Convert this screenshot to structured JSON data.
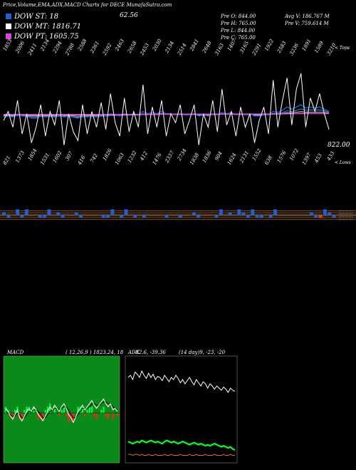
{
  "header": {
    "title": "Price,Volume,EMA,ADX,MACD Charts for DECE MunafaSutra.com",
    "legend": [
      {
        "label": "DOW ST: 18",
        "color": "#1e5fd8"
      },
      {
        "label": "DOW MT: 1816.71",
        "color": "#ffffff"
      },
      {
        "label": "DOW PT: 1605.75",
        "color": "#e040e0"
      }
    ],
    "top_value": "62.56",
    "stats_col1": [
      "Pre  O: 844.00",
      "Pre  H: 765.00",
      "Pre  L: 844.00",
      "Pre  C: 765.00"
    ],
    "stats_col2": [
      "Avg V: 186.767 M",
      "Pre  V: 759.614  M"
    ]
  },
  "price_panel": {
    "right_top_label": "< Tops",
    "right_bottom_label": "< Lows",
    "last_price": "822.00",
    "top_labels": [
      "1853",
      "2006",
      "2411",
      "2134",
      "2294",
      "2788",
      "2588",
      "2361",
      "2592",
      "2463",
      "2658",
      "2453",
      "2030",
      "2134",
      "2514",
      "2841",
      "2648",
      "3163",
      "1407",
      "3165",
      "2291",
      "1922",
      "2583",
      "3236",
      "1891",
      "1589",
      "3210"
    ],
    "bottom_labels": [
      "821",
      "1373",
      "1854",
      "1531",
      "1602",
      "307",
      "416",
      "742",
      "1826",
      "1063",
      "1232",
      "412",
      "1476",
      "2337",
      "2734",
      "1838",
      "1836",
      "904",
      "1624",
      "2131",
      "1552",
      "638",
      "1576",
      "1072",
      "1397",
      "453",
      "433"
    ],
    "close": [
      820,
      900,
      760,
      1000,
      700,
      880,
      620,
      760,
      960,
      680,
      900,
      780,
      1000,
      600,
      880,
      720,
      640,
      960,
      700,
      900,
      760,
      980,
      740,
      1060,
      800,
      680,
      1020,
      720,
      900,
      760,
      1140,
      700,
      940,
      760,
      1000,
      680,
      880,
      800,
      960,
      700,
      820,
      960,
      600,
      880,
      760,
      1000,
      720,
      1100,
      780,
      900,
      680,
      940,
      760,
      880,
      620,
      820,
      940,
      700,
      1180,
      760,
      1000,
      1200,
      780,
      1100,
      1240,
      760,
      1020,
      900,
      1060,
      880,
      740
    ],
    "ema1": [
      850,
      860,
      850,
      870,
      860,
      860,
      840,
      840,
      860,
      850,
      860,
      850,
      870,
      850,
      860,
      850,
      840,
      860,
      850,
      860,
      850,
      870,
      860,
      880,
      870,
      860,
      880,
      870,
      880,
      870,
      900,
      880,
      890,
      880,
      900,
      880,
      880,
      870,
      880,
      870,
      870,
      880,
      860,
      870,
      860,
      880,
      870,
      890,
      880,
      890,
      870,
      880,
      870,
      880,
      860,
      860,
      870,
      870,
      900,
      890,
      910,
      940,
      920,
      940,
      960,
      930,
      940,
      930,
      940,
      920,
      900
    ],
    "ema2": [
      860,
      862,
      858,
      864,
      860,
      860,
      852,
      852,
      856,
      852,
      856,
      854,
      860,
      854,
      856,
      852,
      848,
      854,
      852,
      856,
      852,
      860,
      858,
      866,
      864,
      860,
      868,
      866,
      870,
      866,
      880,
      874,
      878,
      874,
      884,
      876,
      876,
      872,
      876,
      872,
      872,
      876,
      866,
      870,
      866,
      874,
      870,
      880,
      876,
      880,
      872,
      876,
      872,
      876,
      866,
      866,
      870,
      870,
      884,
      880,
      890,
      906,
      900,
      910,
      924,
      910,
      914,
      910,
      914,
      906,
      896
    ],
    "ema3": [
      866,
      866,
      864,
      866,
      864,
      864,
      860,
      860,
      862,
      860,
      862,
      860,
      864,
      860,
      862,
      860,
      858,
      860,
      860,
      862,
      860,
      864,
      862,
      866,
      866,
      864,
      868,
      868,
      870,
      868,
      874,
      872,
      874,
      872,
      878,
      874,
      874,
      872,
      874,
      872,
      872,
      874,
      870,
      872,
      870,
      874,
      872,
      876,
      874,
      876,
      872,
      874,
      872,
      874,
      870,
      870,
      872,
      872,
      878,
      876,
      882,
      890,
      888,
      894,
      900,
      894,
      896,
      894,
      896,
      892,
      888
    ],
    "ema4": [
      870,
      870,
      869,
      870,
      869,
      869,
      867,
      867,
      868,
      867,
      868,
      867,
      869,
      867,
      868,
      867,
      866,
      867,
      867,
      868,
      867,
      869,
      868,
      870,
      870,
      869,
      871,
      871,
      872,
      871,
      874,
      873,
      874,
      873,
      876,
      874,
      874,
      873,
      874,
      873,
      873,
      874,
      872,
      873,
      872,
      874,
      873,
      875,
      874,
      875,
      873,
      874,
      873,
      874,
      872,
      872,
      873,
      873,
      876,
      875,
      878,
      882,
      881,
      884,
      887,
      884,
      885,
      884,
      885,
      883,
      881
    ],
    "ma_magenta": [
      874,
      874,
      874,
      874,
      874,
      874,
      873,
      873,
      873,
      873,
      873,
      873,
      873,
      873,
      873,
      873,
      873,
      873,
      873,
      873,
      873,
      873,
      873,
      874,
      874,
      874,
      874,
      874,
      874,
      874,
      875,
      875,
      875,
      875,
      876,
      876,
      876,
      876,
      876,
      876,
      876,
      876,
      876,
      876,
      876,
      876,
      876,
      877,
      877,
      877,
      877,
      877,
      877,
      877,
      877,
      877,
      877,
      877,
      878,
      878,
      879,
      880,
      880,
      881,
      882,
      882,
      882,
      882,
      882,
      882,
      882
    ],
    "ylim": [
      560,
      1260
    ]
  },
  "volume_panel": {
    "values": [
      1,
      -1,
      0,
      2,
      -1,
      2,
      0,
      0,
      -1,
      -1,
      2,
      0,
      1,
      -1,
      0,
      0,
      1,
      -1,
      0,
      0,
      0,
      0,
      -1,
      -1,
      2,
      0,
      -1,
      2,
      0,
      -1,
      0,
      -1,
      0,
      0,
      0,
      0,
      -1,
      0,
      0,
      -1,
      0,
      0,
      1,
      -1,
      0,
      0,
      0,
      -1,
      2,
      0,
      1,
      0,
      2,
      1,
      -1,
      2,
      -1,
      -1,
      0,
      -1,
      2,
      0,
      0,
      0,
      0,
      0,
      0,
      0,
      1,
      -1,
      -1,
      2,
      1,
      -1
    ],
    "colors": [
      "#1e5fd8",
      "#e04010",
      "#ffffff"
    ]
  },
  "macd_panel": {
    "title": "MACD",
    "params": "( 12,26,9 ) 1823.24,  18",
    "macd": [
      0.3,
      0.1,
      -0.2,
      -0.4,
      -0.1,
      0.2,
      -0.3,
      -0.5,
      -0.2,
      0.1,
      0.3,
      0.1,
      0.4,
      0.2,
      -0.1,
      -0.3,
      -0.5,
      -0.2,
      0.1,
      0.4,
      0.2,
      0.5,
      0.3,
      0.1,
      0.4,
      0.6,
      0.3,
      -0.1,
      -0.3,
      -0.6,
      -0.3,
      0.1,
      0.3,
      0.5,
      0.2,
      0.4,
      0.6,
      0.8,
      0.5,
      0.3,
      0.5,
      0.7,
      0.9,
      0.6,
      0.4,
      0.6,
      0.2,
      0.3,
      0.1
    ],
    "signal": [
      0.1,
      0.0,
      -0.1,
      -0.2,
      -0.2,
      0.0,
      -0.1,
      -0.3,
      -0.3,
      -0.1,
      0.1,
      0.1,
      0.2,
      0.2,
      0.1,
      -0.1,
      -0.3,
      -0.3,
      -0.1,
      0.1,
      0.2,
      0.3,
      0.3,
      0.2,
      0.3,
      0.4,
      0.4,
      0.2,
      -0.1,
      -0.3,
      -0.3,
      -0.1,
      0.1,
      0.3,
      0.3,
      0.3,
      0.4,
      0.6,
      0.6,
      0.5,
      0.5,
      0.6,
      0.7,
      0.7,
      0.6,
      0.6,
      0.4,
      0.3,
      0.2
    ]
  },
  "adx_panel": {
    "title": "ADX",
    "params": "(14 day)9, -23, -20",
    "value_label": "-82.6, -39.36",
    "adx": [
      0.8,
      0.82,
      0.78,
      0.85,
      0.83,
      0.8,
      0.86,
      0.82,
      0.79,
      0.84,
      0.8,
      0.83,
      0.78,
      0.81,
      0.8,
      0.77,
      0.82,
      0.79,
      0.76,
      0.8,
      0.78,
      0.82,
      0.79,
      0.75,
      0.78,
      0.74,
      0.77,
      0.8,
      0.76,
      0.73,
      0.78,
      0.75,
      0.72,
      0.76,
      0.74,
      0.7,
      0.74,
      0.72,
      0.69,
      0.72,
      0.7,
      0.68,
      0.71,
      0.69,
      0.66,
      0.7,
      0.68,
      0.67
    ],
    "plus_di": [
      0.2,
      0.19,
      0.18,
      0.19,
      0.2,
      0.19,
      0.21,
      0.2,
      0.19,
      0.2,
      0.21,
      0.2,
      0.19,
      0.2,
      0.19,
      0.18,
      0.2,
      0.21,
      0.2,
      0.19,
      0.2,
      0.19,
      0.18,
      0.19,
      0.2,
      0.19,
      0.18,
      0.17,
      0.18,
      0.19,
      0.18,
      0.17,
      0.18,
      0.17,
      0.16,
      0.17,
      0.16,
      0.17,
      0.18,
      0.17,
      0.16,
      0.15,
      0.16,
      0.15,
      0.14,
      0.15,
      0.13,
      0.12
    ],
    "minus_di": [
      0.08,
      0.08,
      0.07,
      0.08,
      0.08,
      0.07,
      0.08,
      0.07,
      0.07,
      0.08,
      0.07,
      0.07,
      0.08,
      0.07,
      0.07,
      0.07,
      0.08,
      0.07,
      0.07,
      0.08,
      0.07,
      0.07,
      0.07,
      0.08,
      0.07,
      0.07,
      0.07,
      0.08,
      0.07,
      0.07,
      0.08,
      0.07,
      0.07,
      0.07,
      0.08,
      0.07,
      0.07,
      0.07,
      0.08,
      0.07,
      0.07,
      0.07,
      0.08,
      0.07,
      0.07,
      0.08,
      0.07,
      0.07
    ]
  }
}
